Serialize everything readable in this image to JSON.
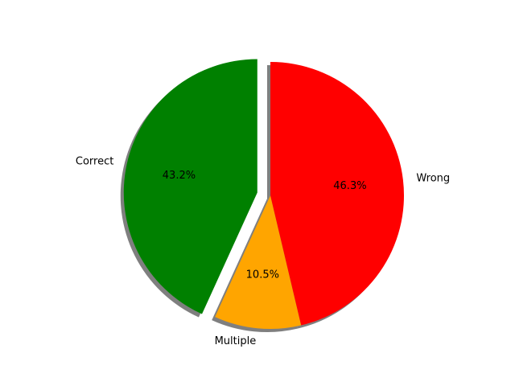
{
  "chart_data": {
    "type": "pie",
    "title": "",
    "slices": [
      {
        "label": "Correct",
        "value": 43.2,
        "pct_label": "43.2%",
        "color": "#008000",
        "exploded": true
      },
      {
        "label": "Multiple",
        "value": 10.5,
        "pct_label": "10.5%",
        "color": "#ffa500",
        "exploded": false
      },
      {
        "label": "Wrong",
        "value": 46.3,
        "pct_label": "46.3%",
        "color": "#ff0000",
        "exploded": false
      }
    ],
    "start_angle_deg": 90,
    "direction": "counterclockwise",
    "shadow": true,
    "legend": "none"
  }
}
